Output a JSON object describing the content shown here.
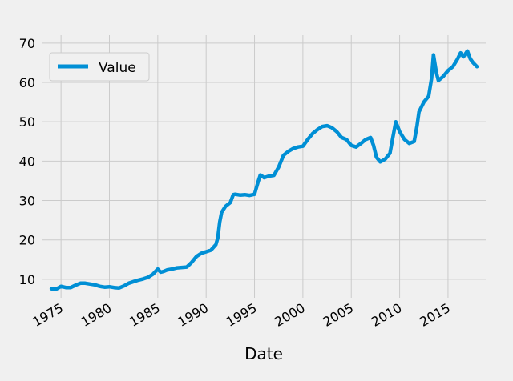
{
  "chart_data": {
    "type": "line",
    "title": "",
    "xlabel": "Date",
    "ylabel": "",
    "xlim": [
      1973.0,
      2018.9
    ],
    "ylim": [
      5.3,
      72.0
    ],
    "x_ticks": [
      1975,
      1980,
      1985,
      1990,
      1995,
      2000,
      2005,
      2010,
      2015
    ],
    "x_tick_labels": [
      "1975",
      "1980",
      "1985",
      "1990",
      "1995",
      "2000",
      "2005",
      "2010",
      "2015"
    ],
    "y_ticks": [
      10,
      20,
      30,
      40,
      50,
      60,
      70
    ],
    "y_tick_labels": [
      "10",
      "20",
      "30",
      "40",
      "50",
      "60",
      "70"
    ],
    "grid": true,
    "legend": {
      "position": "top-left",
      "entries": [
        "Value"
      ]
    },
    "colors": {
      "series": "#008fd5",
      "background": "#f0f0f0",
      "grid": "#cbcbcb"
    },
    "series": [
      {
        "name": "Value",
        "points": [
          [
            1974.0,
            7.6
          ],
          [
            1974.5,
            7.5
          ],
          [
            1975.0,
            8.2
          ],
          [
            1975.5,
            7.9
          ],
          [
            1976.0,
            7.9
          ],
          [
            1976.5,
            8.5
          ],
          [
            1977.0,
            9.0
          ],
          [
            1977.5,
            9.0
          ],
          [
            1978.0,
            8.8
          ],
          [
            1978.5,
            8.6
          ],
          [
            1979.0,
            8.2
          ],
          [
            1979.5,
            8.0
          ],
          [
            1980.0,
            8.1
          ],
          [
            1980.5,
            7.9
          ],
          [
            1981.0,
            7.8
          ],
          [
            1981.5,
            8.3
          ],
          [
            1982.0,
            9.0
          ],
          [
            1982.5,
            9.4
          ],
          [
            1983.0,
            9.8
          ],
          [
            1983.5,
            10.1
          ],
          [
            1984.0,
            10.5
          ],
          [
            1984.5,
            11.3
          ],
          [
            1985.0,
            12.6
          ],
          [
            1985.3,
            11.8
          ],
          [
            1985.6,
            12.0
          ],
          [
            1986.0,
            12.4
          ],
          [
            1986.5,
            12.6
          ],
          [
            1987.0,
            12.9
          ],
          [
            1987.5,
            13.0
          ],
          [
            1988.0,
            13.1
          ],
          [
            1988.5,
            14.3
          ],
          [
            1989.0,
            15.8
          ],
          [
            1989.5,
            16.6
          ],
          [
            1990.0,
            17.0
          ],
          [
            1990.5,
            17.4
          ],
          [
            1991.0,
            18.8
          ],
          [
            1991.2,
            20.5
          ],
          [
            1991.4,
            24.5
          ],
          [
            1991.6,
            27.0
          ],
          [
            1992.0,
            28.5
          ],
          [
            1992.5,
            29.5
          ],
          [
            1992.8,
            31.5
          ],
          [
            1993.0,
            31.6
          ],
          [
            1993.5,
            31.4
          ],
          [
            1994.0,
            31.5
          ],
          [
            1994.5,
            31.3
          ],
          [
            1995.0,
            31.6
          ],
          [
            1995.4,
            35.0
          ],
          [
            1995.6,
            36.5
          ],
          [
            1996.0,
            35.8
          ],
          [
            1996.5,
            36.2
          ],
          [
            1997.0,
            36.4
          ],
          [
            1997.5,
            38.5
          ],
          [
            1998.0,
            41.5
          ],
          [
            1998.5,
            42.5
          ],
          [
            1999.0,
            43.2
          ],
          [
            1999.5,
            43.6
          ],
          [
            2000.0,
            43.8
          ],
          [
            2000.5,
            45.5
          ],
          [
            2001.0,
            47.0
          ],
          [
            2001.5,
            48.0
          ],
          [
            2002.0,
            48.8
          ],
          [
            2002.5,
            49.0
          ],
          [
            2003.0,
            48.5
          ],
          [
            2003.5,
            47.5
          ],
          [
            2004.0,
            46.0
          ],
          [
            2004.5,
            45.5
          ],
          [
            2005.0,
            44.0
          ],
          [
            2005.5,
            43.6
          ],
          [
            2006.0,
            44.5
          ],
          [
            2006.5,
            45.5
          ],
          [
            2007.0,
            46.0
          ],
          [
            2007.3,
            44.0
          ],
          [
            2007.6,
            41.0
          ],
          [
            2008.0,
            39.8
          ],
          [
            2008.5,
            40.5
          ],
          [
            2009.0,
            42.0
          ],
          [
            2009.3,
            46.0
          ],
          [
            2009.6,
            50.0
          ],
          [
            2010.0,
            47.5
          ],
          [
            2010.5,
            45.5
          ],
          [
            2011.0,
            44.5
          ],
          [
            2011.5,
            45.0
          ],
          [
            2011.8,
            49.0
          ],
          [
            2012.0,
            52.5
          ],
          [
            2012.5,
            55.0
          ],
          [
            2013.0,
            56.5
          ],
          [
            2013.3,
            61.0
          ],
          [
            2013.5,
            67.0
          ],
          [
            2013.8,
            62.5
          ],
          [
            2014.0,
            60.5
          ],
          [
            2014.5,
            61.5
          ],
          [
            2015.0,
            63.0
          ],
          [
            2015.5,
            64.0
          ],
          [
            2016.0,
            66.0
          ],
          [
            2016.3,
            67.5
          ],
          [
            2016.6,
            66.5
          ],
          [
            2017.0,
            68.0
          ],
          [
            2017.3,
            66.0
          ],
          [
            2017.6,
            65.0
          ],
          [
            2018.0,
            64.0
          ]
        ]
      }
    ]
  }
}
